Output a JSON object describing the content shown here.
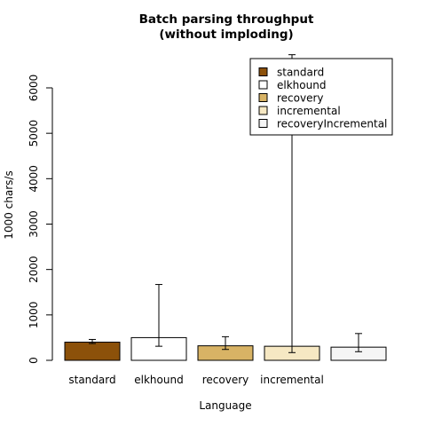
{
  "chart_data": {
    "type": "bar",
    "title": "Batch parsing throughput\n(without imploding)",
    "xlabel": "Language",
    "ylabel": "1000 chars/s",
    "ylim": [
      0,
      6000
    ],
    "yticks": [
      0,
      1000,
      2000,
      3000,
      4000,
      5000,
      6000
    ],
    "categories": [
      "standard",
      "elkhound",
      "recovery",
      "incremental",
      "recoveryIncremental"
    ],
    "x_tick_labels": [
      "standard",
      "elkhound",
      "recovery",
      "incremental",
      ""
    ],
    "values": [
      400,
      500,
      320,
      310,
      290
    ],
    "errors": [
      {
        "low": 370,
        "high": 460
      },
      {
        "low": 310,
        "high": 1670
      },
      {
        "low": 240,
        "high": 520
      },
      {
        "low": 170,
        "high": 6730
      },
      {
        "low": 190,
        "high": 590
      }
    ],
    "colors": [
      "#8C510A",
      "#FFFFFF",
      "#D8B365",
      "#F6E8C3",
      "#F5F5F5"
    ],
    "legend": {
      "placement": "top-right",
      "entries": [
        "standard",
        "elkhound",
        "recovery",
        "incremental",
        "recoveryIncremental"
      ]
    },
    "grid": false
  }
}
